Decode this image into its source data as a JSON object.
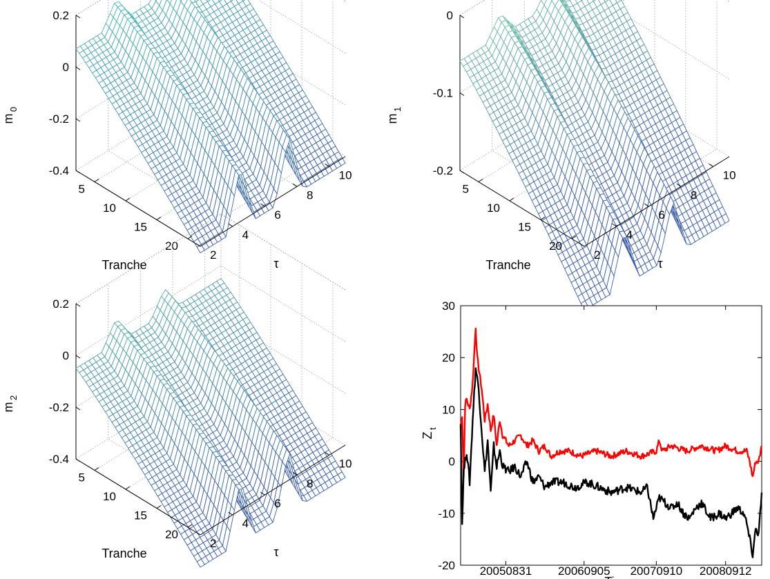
{
  "chart_data": [
    {
      "type": "surface",
      "zlabel": "m",
      "zlabel_sub": "0",
      "xlabel": "Tranche",
      "ylabel": "τ",
      "tranche_ticks": [
        "5",
        "10",
        "15",
        "20"
      ],
      "tau_ticks": [
        "2",
        "4",
        "6",
        "8",
        "10"
      ],
      "z_ticks": [
        "0.2",
        "0",
        "-0.2",
        "-0.4"
      ],
      "zlim": [
        -0.4,
        0.2
      ],
      "tranche_range": [
        2,
        22
      ],
      "tau_range": [
        2,
        11
      ],
      "ridges_tau": [
        4.5,
        7.5
      ],
      "z_high_tranche": 0.1,
      "z_low_tranche": -0.35,
      "ridge_height": 0.3,
      "colormap": [
        "#3a5ea8",
        "#4fc3b8"
      ]
    },
    {
      "type": "surface",
      "zlabel": "m",
      "zlabel_sub": "1",
      "xlabel": "Tranche",
      "ylabel": "τ",
      "tranche_ticks": [
        "5",
        "10",
        "15",
        "20"
      ],
      "tau_ticks": [
        "2",
        "4",
        "6",
        "8",
        "10"
      ],
      "z_ticks": [
        "0",
        "-0.1",
        "-0.2"
      ],
      "zlim": [
        -0.2,
        0.0
      ],
      "tranche_range": [
        2,
        22
      ],
      "tau_range": [
        2,
        11
      ],
      "ridges_tau": [
        4.5,
        7.5
      ],
      "z_high_tranche": -0.05,
      "z_low_tranche": -0.26,
      "ridge_height": 0.09,
      "colormap": [
        "#3a5ea8",
        "#7ed9a8"
      ]
    },
    {
      "type": "surface",
      "zlabel": "m",
      "zlabel_sub": "2",
      "xlabel": "Tranche",
      "ylabel": "τ",
      "tranche_ticks": [
        "5",
        "10",
        "15",
        "20"
      ],
      "tau_ticks": [
        "2",
        "4",
        "6",
        "8",
        "10"
      ],
      "z_ticks": [
        "0.2",
        "0",
        "-0.2",
        "-0.4"
      ],
      "zlim": [
        -0.4,
        0.2
      ],
      "tranche_range": [
        2,
        22
      ],
      "tau_range": [
        2,
        11
      ],
      "ridges_tau": [
        4.5,
        7.5
      ],
      "z_high_tranche": -0.02,
      "z_low_tranche": -0.45,
      "ridge_height": 0.3,
      "colormap": [
        "#3a5ea8",
        "#5fd0a8"
      ]
    },
    {
      "type": "line",
      "xlabel": "Time",
      "ylabel": "Z",
      "ylabel_sub": "t",
      "ylim": [
        -20,
        30
      ],
      "y_ticks": [
        "30",
        "20",
        "10",
        "0",
        "-10",
        "-20"
      ],
      "x_ticks": [
        "20050831",
        "20060905",
        "20070910",
        "20080912"
      ],
      "x_tick_positions": [
        0.15,
        0.41,
        0.65,
        0.88
      ],
      "series": [
        {
          "color": "#ff0000",
          "points": [
            [
              0,
              6
            ],
            [
              0.005,
              9
            ],
            [
              0.01,
              -3
            ],
            [
              0.015,
              11
            ],
            [
              0.02,
              12
            ],
            [
              0.03,
              10
            ],
            [
              0.04,
              15
            ],
            [
              0.05,
              26
            ],
            [
              0.055,
              20
            ],
            [
              0.06,
              18
            ],
            [
              0.07,
              14
            ],
            [
              0.08,
              8
            ],
            [
              0.09,
              11
            ],
            [
              0.1,
              6
            ],
            [
              0.11,
              9
            ],
            [
              0.12,
              3
            ],
            [
              0.13,
              8
            ],
            [
              0.14,
              5
            ],
            [
              0.16,
              3
            ],
            [
              0.18,
              4
            ],
            [
              0.2,
              5
            ],
            [
              0.22,
              3
            ],
            [
              0.24,
              4
            ],
            [
              0.26,
              2
            ],
            [
              0.28,
              3
            ],
            [
              0.3,
              1
            ],
            [
              0.33,
              2
            ],
            [
              0.36,
              2
            ],
            [
              0.4,
              1
            ],
            [
              0.45,
              2
            ],
            [
              0.5,
              1
            ],
            [
              0.55,
              2
            ],
            [
              0.6,
              1
            ],
            [
              0.65,
              2
            ],
            [
              0.66,
              4
            ],
            [
              0.67,
              2
            ],
            [
              0.7,
              3
            ],
            [
              0.75,
              2
            ],
            [
              0.8,
              3
            ],
            [
              0.85,
              2
            ],
            [
              0.88,
              3
            ],
            [
              0.92,
              2
            ],
            [
              0.95,
              2
            ],
            [
              0.96,
              0
            ],
            [
              0.97,
              -3
            ],
            [
              0.98,
              0
            ],
            [
              0.99,
              0
            ],
            [
              1.0,
              3
            ]
          ]
        },
        {
          "color": "#000000",
          "points": [
            [
              0,
              8
            ],
            [
              0.005,
              -12
            ],
            [
              0.01,
              -2
            ],
            [
              0.02,
              2
            ],
            [
              0.03,
              -4
            ],
            [
              0.04,
              8
            ],
            [
              0.05,
              18
            ],
            [
              0.06,
              14
            ],
            [
              0.07,
              6
            ],
            [
              0.08,
              -2
            ],
            [
              0.09,
              4
            ],
            [
              0.1,
              -6
            ],
            [
              0.11,
              3
            ],
            [
              0.12,
              -1
            ],
            [
              0.13,
              2
            ],
            [
              0.14,
              -1
            ],
            [
              0.16,
              -2
            ],
            [
              0.18,
              -1
            ],
            [
              0.2,
              -3
            ],
            [
              0.22,
              0
            ],
            [
              0.24,
              -4
            ],
            [
              0.26,
              -3
            ],
            [
              0.28,
              -5
            ],
            [
              0.3,
              -4
            ],
            [
              0.34,
              -4
            ],
            [
              0.38,
              -5
            ],
            [
              0.42,
              -4
            ],
            [
              0.46,
              -5
            ],
            [
              0.5,
              -6
            ],
            [
              0.55,
              -5
            ],
            [
              0.6,
              -6
            ],
            [
              0.62,
              -5
            ],
            [
              0.64,
              -11
            ],
            [
              0.66,
              -7
            ],
            [
              0.68,
              -8
            ],
            [
              0.7,
              -9
            ],
            [
              0.72,
              -8
            ],
            [
              0.74,
              -10
            ],
            [
              0.76,
              -11
            ],
            [
              0.78,
              -9
            ],
            [
              0.8,
              -8
            ],
            [
              0.83,
              -11
            ],
            [
              0.86,
              -10
            ],
            [
              0.88,
              -11
            ],
            [
              0.9,
              -10
            ],
            [
              0.92,
              -9
            ],
            [
              0.94,
              -10
            ],
            [
              0.95,
              -12
            ],
            [
              0.96,
              -15
            ],
            [
              0.97,
              -18
            ],
            [
              0.98,
              -13
            ],
            [
              0.99,
              -14
            ],
            [
              1.0,
              -6
            ]
          ]
        }
      ]
    }
  ]
}
